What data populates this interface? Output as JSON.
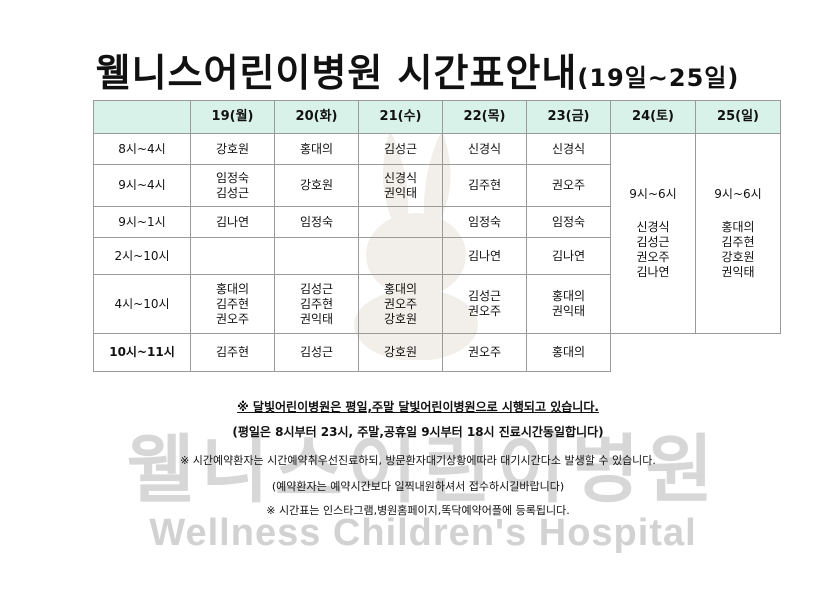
{
  "title": {
    "main": "웰니스어린이병원  시간표안내",
    "range": "(19일~25일)"
  },
  "table": {
    "headers": [
      "",
      "19(월)",
      "20(화)",
      "21(수)",
      "22(목)",
      "23(금)",
      "24(토)",
      "25(일)"
    ],
    "rows": [
      {
        "time": "8시~4시",
        "cells": [
          "강호원",
          "홍대의",
          "김성근",
          "신경식",
          "신경식"
        ]
      },
      {
        "time": "9시~4시",
        "cells": [
          "임정숙\n김성근",
          "강호원",
          "신경식\n권익태",
          "김주현",
          "권오주"
        ]
      },
      {
        "time": "9시~1시",
        "cells": [
          "김나연",
          "임정숙",
          "",
          "임정숙",
          "임정숙"
        ]
      },
      {
        "time": "2시~10시",
        "cells": [
          "",
          "",
          "",
          "김나연",
          "김나연"
        ]
      },
      {
        "time": "4시~10시",
        "cells": [
          "홍대의\n김주현\n권오주",
          "김성근\n김주현\n권익태",
          "홍대의\n권오주\n강호원",
          "김성근\n권오주",
          "홍대의\n권익태"
        ]
      },
      {
        "time": "10시~11시",
        "cells": [
          "김주현",
          "김성근",
          "강호원",
          "권오주",
          "홍대의"
        ]
      }
    ],
    "weekend": {
      "sat": {
        "hours": "9시~6시",
        "doctors": "신경식\n김성근\n권오주\n김나연"
      },
      "sun": {
        "hours": "9시~6시",
        "doctors": "홍대의\n김주현\n강호원\n권익태"
      }
    }
  },
  "notes": {
    "line1": "※ 달빛어린이병원은 평일,주말 달빛어린이병원으로 시행되고 있습니다.",
    "line2": "(평일은 8시부터 23시, 주말,공휴일 9시부터 18시 진료시간동일합니다)",
    "line3": "※ 시간예약환자는 시간예약취우선진료하되, 방문환자대기상황에따라 대기시간다소 발생할 수 있습니다.",
    "line4": "(예약환자는 예약시간보다 일찍내원하셔서 접수하시길바랍니다)",
    "line5": "※ 시간표는 인스타그램,병원홈페이지,똑닥예약어플에 등록됩니다."
  },
  "watermark": {
    "korean": "웰니스어린이병원",
    "english": "Wellness Children's Hospital"
  }
}
